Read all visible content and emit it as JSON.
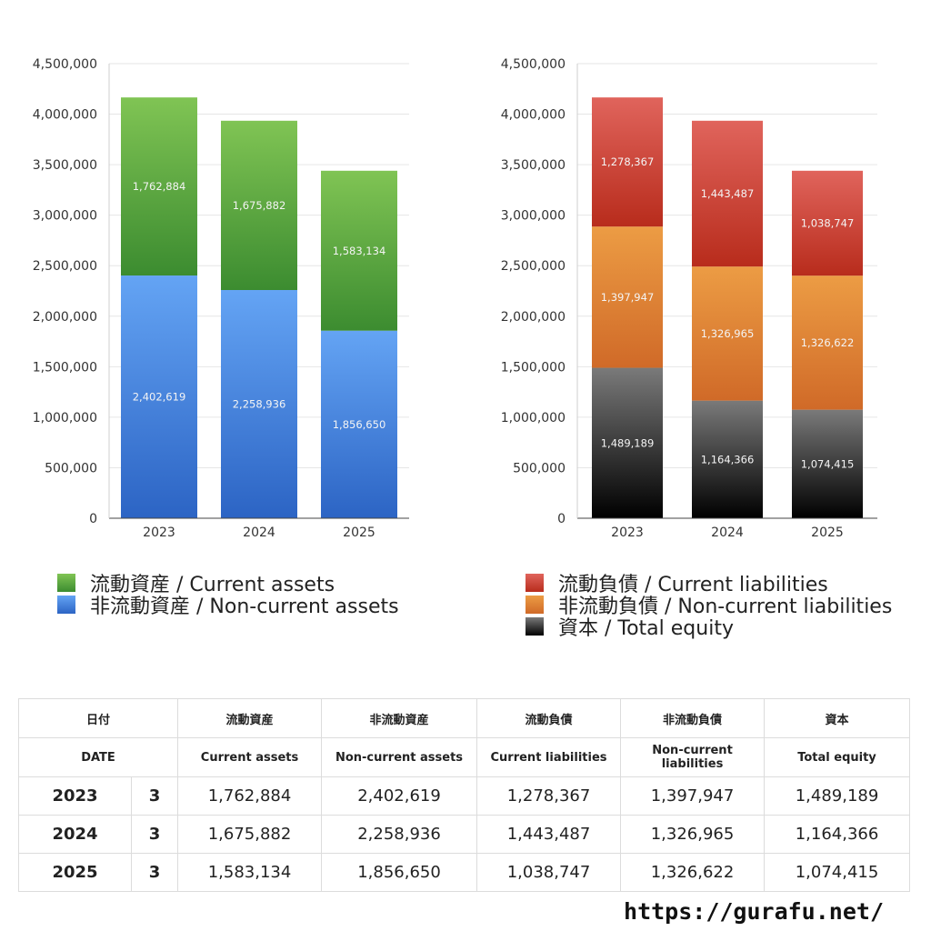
{
  "chart_data": [
    {
      "type": "bar",
      "stacked": true,
      "categories": [
        "2023",
        "2024",
        "2025"
      ],
      "series": [
        {
          "name": "非流動資産 / Non-current assets",
          "values": [
            2402619,
            2258936,
            1856650
          ],
          "color_top": "#64a4f4",
          "color_bottom": "#2c64c4"
        },
        {
          "name": "流動資産 / Current assets",
          "values": [
            1762884,
            1675882,
            1583134
          ],
          "color_top": "#80c454",
          "color_bottom": "#3c8c30"
        }
      ],
      "legend_order": [
        1,
        0
      ],
      "ylim": [
        0,
        4500000
      ],
      "yticks": [
        0,
        500000,
        1000000,
        1500000,
        2000000,
        2500000,
        3000000,
        3500000,
        4000000,
        4500000
      ],
      "grid": true
    },
    {
      "type": "bar",
      "stacked": true,
      "categories": [
        "2023",
        "2024",
        "2025"
      ],
      "series": [
        {
          "name": "資本 / Total equity",
          "values": [
            1489189,
            1164366,
            1074415
          ],
          "color_top": "#7a7a7a",
          "color_bottom": "#000000"
        },
        {
          "name": "非流動負債 / Non-current liabilities",
          "values": [
            1397947,
            1326965,
            1326622
          ],
          "color_top": "#ec9c44",
          "color_bottom": "#d06a28"
        },
        {
          "name": "流動負債 / Current liabilities",
          "values": [
            1278367,
            1443487,
            1038747
          ],
          "color_top": "#e0645c",
          "color_bottom": "#b82c1c"
        }
      ],
      "legend_order": [
        2,
        1,
        0
      ],
      "ylim": [
        0,
        4500000
      ],
      "yticks": [
        0,
        500000,
        1000000,
        1500000,
        2000000,
        2500000,
        3000000,
        3500000,
        4000000,
        4500000
      ],
      "grid": true
    }
  ],
  "table": {
    "header_jp": [
      "日付",
      "流動資産",
      "非流動資産",
      "流動負債",
      "非流動負債",
      "資本"
    ],
    "header_en": [
      "DATE",
      "Current assets",
      "Non-current assets",
      "Current liabilities",
      "Non-current liabilities",
      "Total equity"
    ],
    "rows": [
      {
        "year": "2023",
        "month": "3",
        "values": [
          "1,762,884",
          "2,402,619",
          "1,278,367",
          "1,397,947",
          "1,489,189"
        ]
      },
      {
        "year": "2024",
        "month": "3",
        "values": [
          "1,675,882",
          "2,258,936",
          "1,443,487",
          "1,326,965",
          "1,164,366"
        ]
      },
      {
        "year": "2025",
        "month": "3",
        "values": [
          "1,583,134",
          "1,856,650",
          "1,038,747",
          "1,326,622",
          "1,074,415"
        ]
      }
    ]
  },
  "footer": {
    "url": "https://gurafu.net/"
  }
}
